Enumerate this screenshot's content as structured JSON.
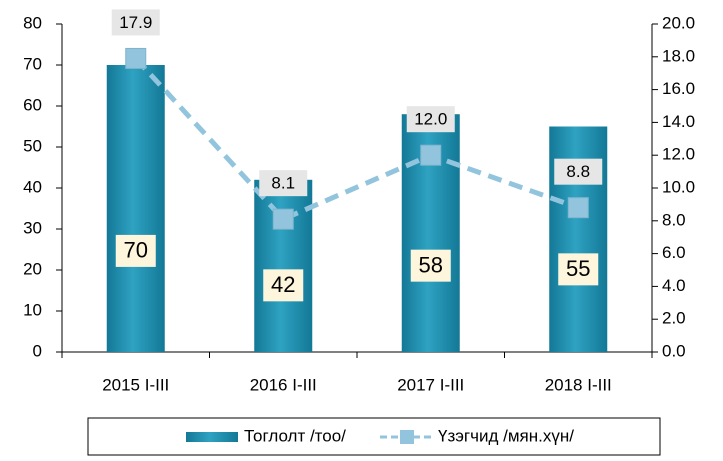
{
  "chart_data": {
    "type": "bar_line",
    "categories": [
      "2015 I-III",
      "2016 I-III",
      "2017 I-III",
      "2018 I-III"
    ],
    "series": [
      {
        "name": "Тоглолт /тоо/",
        "color": "#1f8aab",
        "values": [
          70,
          42,
          58,
          55
        ]
      },
      {
        "name": "Үзэгчид /мян.хүн/",
        "color": "#92c5dd",
        "axis": "y2",
        "values": [
          17.9,
          8.1,
          12.0,
          8.8
        ],
        "value_labels": [
          "17.9",
          "8.1",
          "12.0",
          "8.8"
        ]
      }
    ],
    "ylim": [
      0,
      80
    ],
    "yticks": [
      0,
      10,
      20,
      30,
      40,
      50,
      60,
      70,
      80
    ],
    "y2lim": [
      0,
      20
    ],
    "y2ticks": [
      {
        "value": 0,
        "label": "0.0"
      },
      {
        "value": 2,
        "label": "2.0"
      },
      {
        "value": 4,
        "label": "4.0"
      },
      {
        "value": 6,
        "label": "6.0"
      },
      {
        "value": 8,
        "label": "8.0"
      },
      {
        "value": 10,
        "label": "10.0"
      },
      {
        "value": 12,
        "label": "12.0"
      },
      {
        "value": 14,
        "label": "14.0"
      },
      {
        "value": 16,
        "label": "16.0"
      },
      {
        "value": 18,
        "label": "18.0"
      },
      {
        "value": 20,
        "label": "20.0"
      }
    ],
    "legend": "bottom"
  }
}
